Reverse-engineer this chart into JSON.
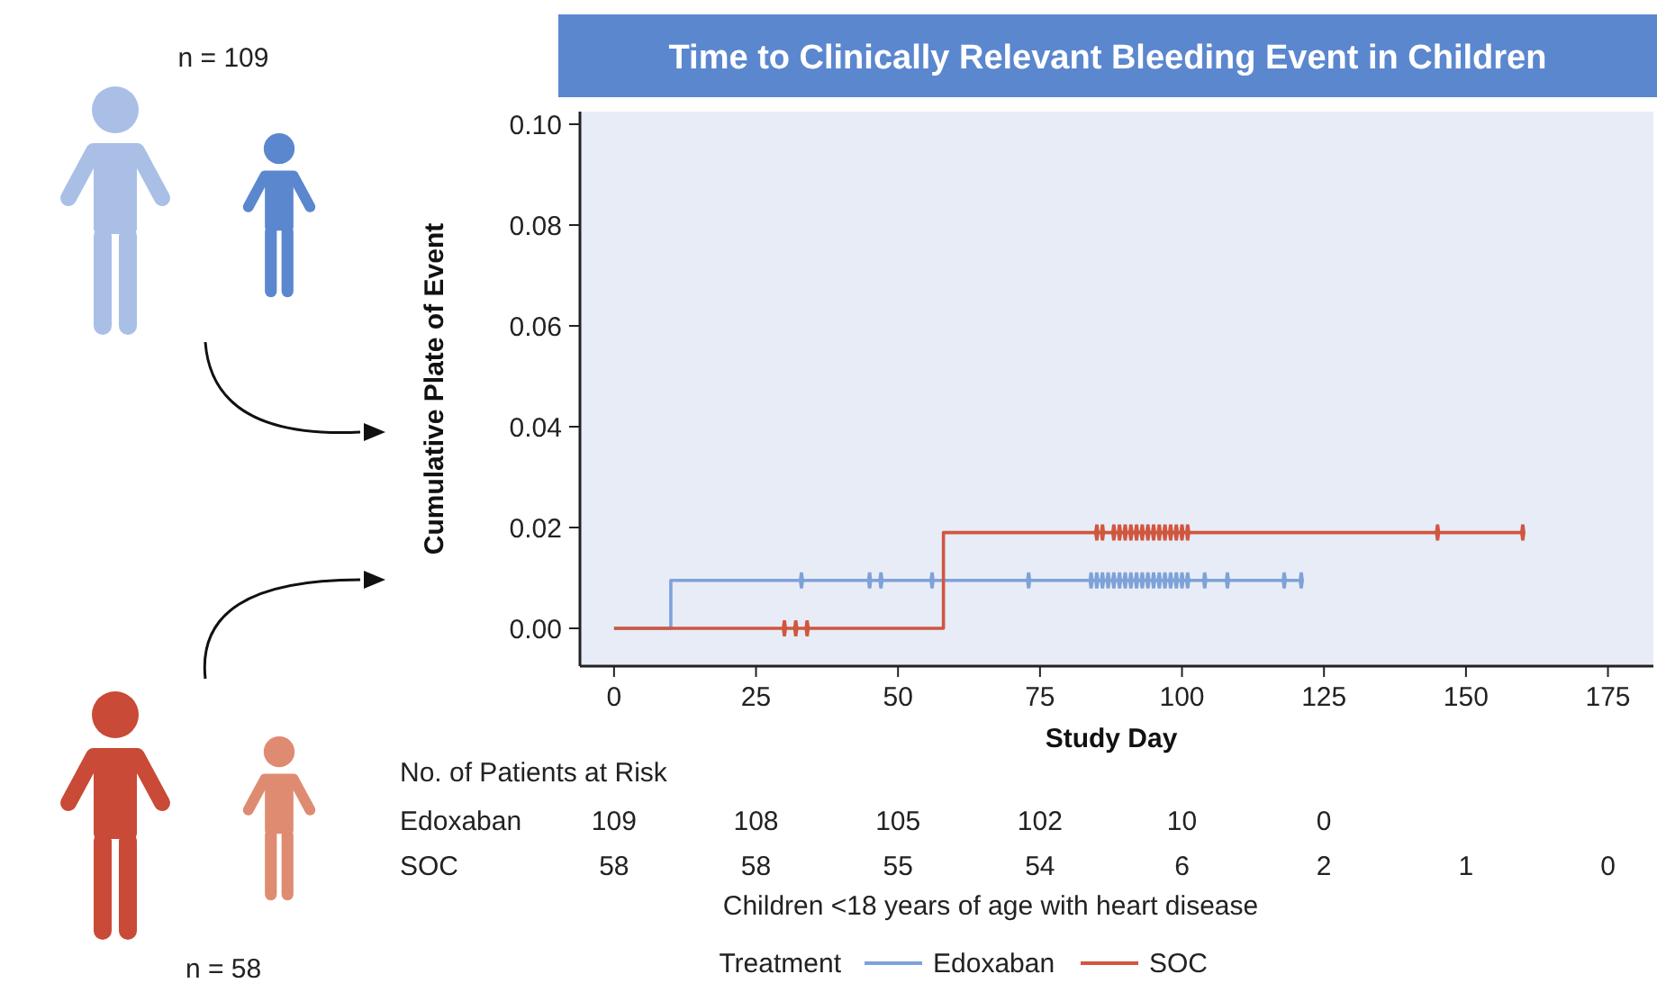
{
  "chart_data": {
    "type": "step",
    "title": "Time to Clinically Relevant Bleeding Event in Children",
    "xlabel": "Study Day",
    "ylabel": "Cumulative Plate of Event",
    "legend_title": "Treatment",
    "legend": "bottom",
    "xlim": [
      -6,
      183
    ],
    "ylim": [
      -0.0075,
      0.1025
    ],
    "xticks": [
      0,
      25,
      50,
      75,
      100,
      125,
      150,
      175
    ],
    "yticks": [
      {
        "value": 0,
        "label": "0.00"
      },
      {
        "value": 0.02,
        "label": "0.02"
      },
      {
        "value": 0.04,
        "label": "0.04"
      },
      {
        "value": 0.06,
        "label": "0.06"
      },
      {
        "value": 0.08,
        "label": "0.08"
      },
      {
        "value": 0.1,
        "label": "0.10"
      }
    ],
    "series": [
      {
        "name": "Edoxaban",
        "color": "#7ea2d8",
        "x": [
          0,
          10,
          121
        ],
        "values": [
          0,
          0.0095,
          0.0095
        ]
      },
      {
        "name": "SOC",
        "color": "#d0573f",
        "x": [
          0,
          58,
          160
        ],
        "values": [
          0,
          0.019,
          0.019
        ]
      },
      {
        "type": "scatter",
        "marker": "diamond",
        "color": "#7ea2d8",
        "x": [
          33,
          45,
          47,
          56,
          73,
          84,
          85,
          86,
          87,
          88,
          89,
          90,
          91,
          92,
          93,
          94,
          95,
          96,
          97,
          98,
          99,
          100,
          101,
          104,
          108,
          118,
          121
        ],
        "values": [
          0.0095,
          0.0095,
          0.0095,
          0.0095,
          0.0095,
          0.0095,
          0.0095,
          0.0095,
          0.0095,
          0.0095,
          0.0095,
          0.0095,
          0.0095,
          0.0095,
          0.0095,
          0.0095,
          0.0095,
          0.0095,
          0.0095,
          0.0095,
          0.0095,
          0.0095,
          0.0095,
          0.0095,
          0.0095,
          0.0095,
          0.0095
        ]
      },
      {
        "type": "scatter",
        "marker": "diamond",
        "color": "#d0573f",
        "x": [
          30,
          32,
          34,
          85,
          86,
          88,
          89,
          90,
          91,
          92,
          93,
          94,
          95,
          96,
          97,
          98,
          99,
          100,
          101,
          145,
          160
        ],
        "values": [
          0,
          0,
          0,
          0.019,
          0.019,
          0.019,
          0.019,
          0.019,
          0.019,
          0.019,
          0.019,
          0.019,
          0.019,
          0.019,
          0.019,
          0.019,
          0.019,
          0.019,
          0.019,
          0.019,
          0.019
        ]
      }
    ],
    "annotations": [
      "n = 109",
      "n = 58",
      "No. of Patients at Risk",
      "Edoxaban",
      "109",
      "108",
      "105",
      "102",
      "10",
      "0",
      "SOC",
      "58",
      "58",
      "55",
      "54",
      "6",
      "2",
      "1",
      "0",
      "Children <18 years of age with heart disease"
    ]
  }
}
